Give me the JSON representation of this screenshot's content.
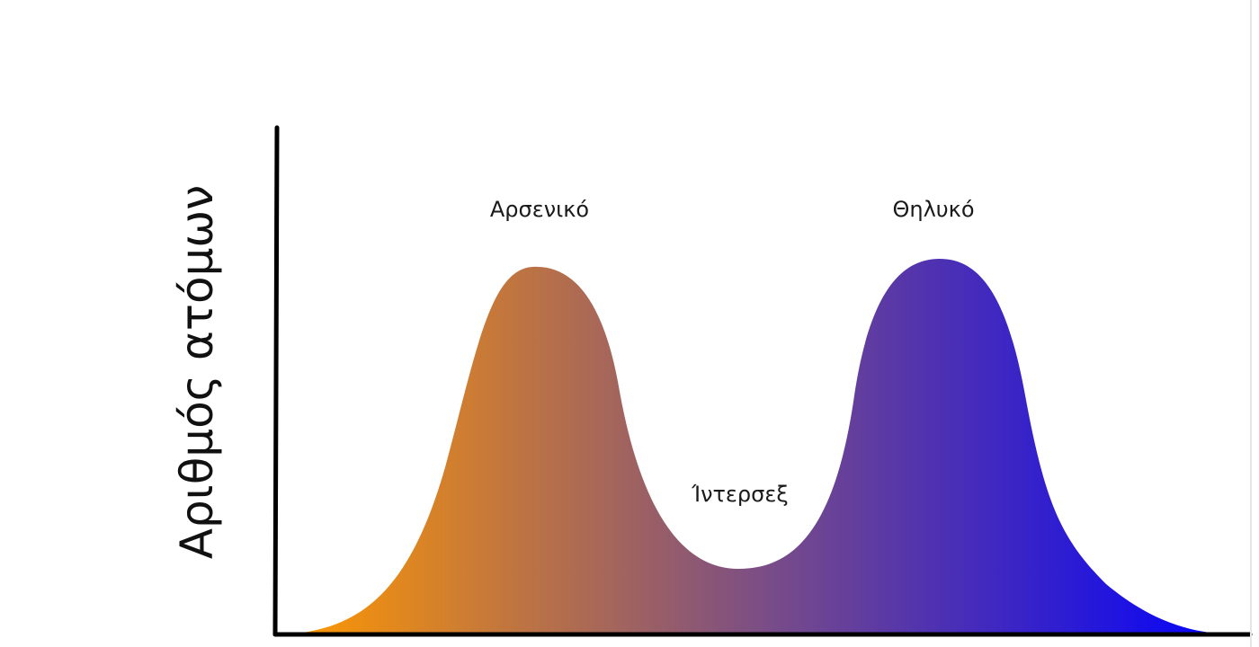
{
  "y_axis_title": "Αριθμός ατόμων",
  "labels": {
    "male": "Αρσενικό",
    "intersex": "Ίντερσεξ",
    "female": "Θηλυκό"
  },
  "colors": {
    "gradient_start": "#FF9900",
    "gradient_mid": "#7A4D86",
    "gradient_end": "#0000FF",
    "axis": "#000000",
    "text": "#1a1a1a"
  }
}
